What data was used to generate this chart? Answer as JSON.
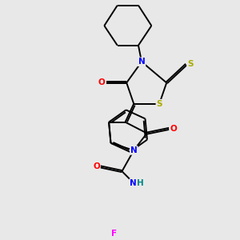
{
  "bg_color": "#e8e8e8",
  "atom_colors": {
    "N": "#0000ff",
    "O": "#ff0000",
    "S": "#aaaa00",
    "F": "#ff00ff",
    "H": "#008888",
    "C": "#000000"
  },
  "bond_color": "#000000",
  "bond_lw": 1.4
}
